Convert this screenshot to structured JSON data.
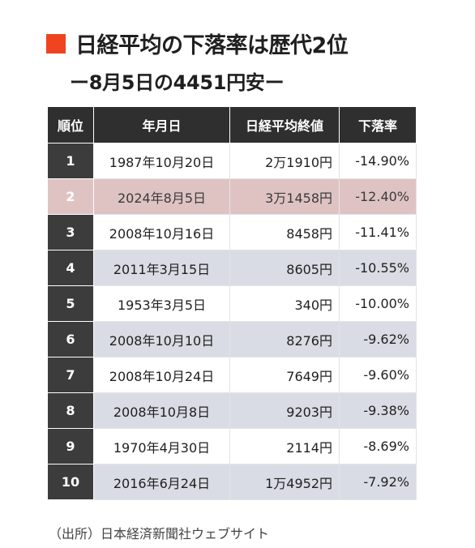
{
  "title": "日経平均の下落率は歴代2位",
  "subtitle": "ー8月5日の4451円安ー",
  "accent_color": "#f0431f",
  "highlight_color": "#dfc3c3",
  "table": {
    "headers": [
      "順位",
      "年月日",
      "日経平均終値",
      "下落率"
    ],
    "rows": [
      {
        "rank": "1",
        "date": "1987年10月20日",
        "close": "2万1910円",
        "rate": "-14.90%"
      },
      {
        "rank": "2",
        "date": "2024年8月5日",
        "close": "3万1458円",
        "rate": "-12.40%"
      },
      {
        "rank": "3",
        "date": "2008年10月16日",
        "close": "8458円",
        "rate": "-11.41%"
      },
      {
        "rank": "4",
        "date": "2011年3月15日",
        "close": "8605円",
        "rate": "-10.55%"
      },
      {
        "rank": "5",
        "date": "1953年3月5日",
        "close": "340円",
        "rate": "-10.00%"
      },
      {
        "rank": "6",
        "date": "2008年10月10日",
        "close": "8276円",
        "rate": "-9.62%"
      },
      {
        "rank": "7",
        "date": "2008年10月24日",
        "close": "7649円",
        "rate": "-9.60%"
      },
      {
        "rank": "8",
        "date": "2008年10月8日",
        "close": "9203円",
        "rate": "-9.38%"
      },
      {
        "rank": "9",
        "date": "1970年4月30日",
        "close": "2114円",
        "rate": "-8.69%"
      },
      {
        "rank": "10",
        "date": "2016年6月24日",
        "close": "1万4952円",
        "rate": "-7.92%"
      }
    ]
  },
  "source": "（出所）日本経済新聞社ウェブサイト"
}
